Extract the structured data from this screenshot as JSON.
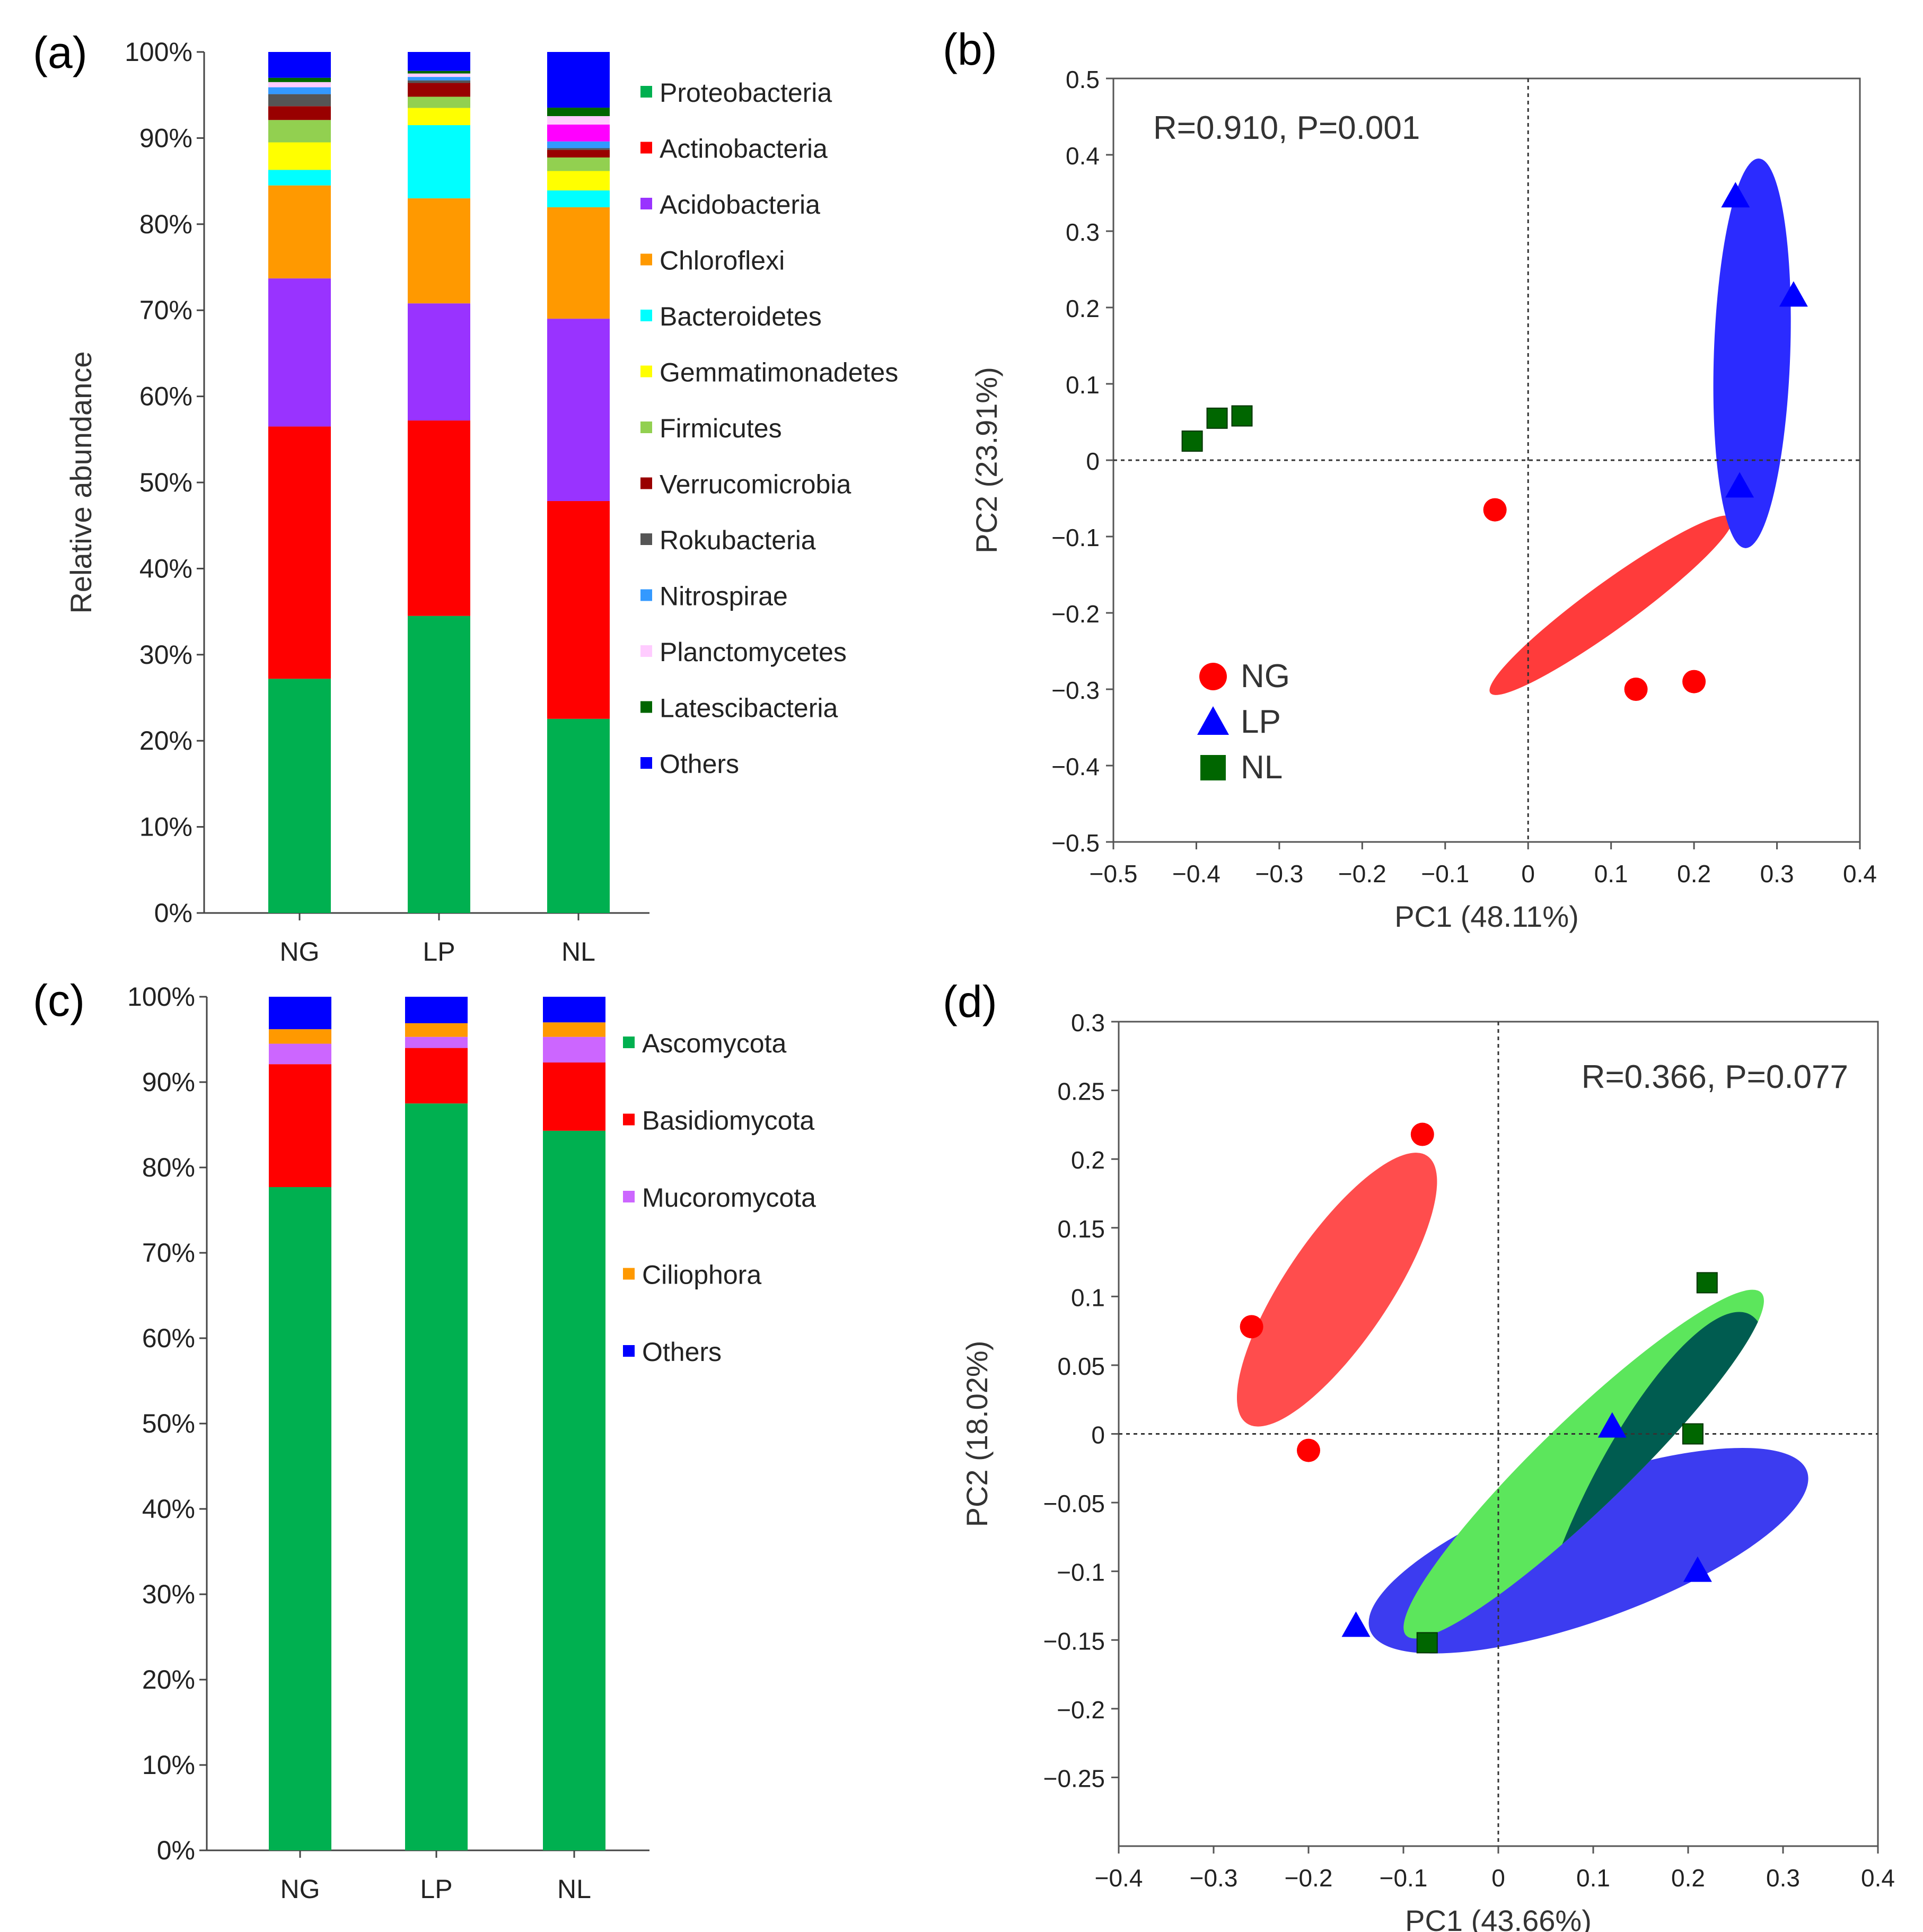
{
  "chart_data": [
    {
      "panel": "(a)",
      "type": "bar",
      "stacked": true,
      "categories": [
        "NG",
        "LP",
        "NL"
      ],
      "ylabel": "Relative abundance",
      "ylim": [
        0,
        100
      ],
      "yticks": [
        "0%",
        "10%",
        "20%",
        "30%",
        "40%",
        "50%",
        "60%",
        "70%",
        "80%",
        "90%",
        "100%"
      ],
      "legend_position": "right",
      "series": [
        {
          "name": "Proteobacteria",
          "color": "#00b050",
          "values": [
            27.2,
            34.5,
            23.0
          ]
        },
        {
          "name": "Actinobacteria",
          "color": "#ff0000",
          "values": [
            29.3,
            22.7,
            25.8
          ]
        },
        {
          "name": "Acidobacteria",
          "color": "#9933ff",
          "values": [
            17.2,
            13.6,
            21.6
          ]
        },
        {
          "name": "Chloroflexi",
          "color": "#ff9900",
          "values": [
            10.8,
            12.2,
            13.2
          ]
        },
        {
          "name": "Bacteroidetes",
          "color": "#00ffff",
          "values": [
            1.8,
            8.5,
            2.0
          ]
        },
        {
          "name": "Gemmatimonadetes",
          "color": "#ffff00",
          "values": [
            3.2,
            2.0,
            2.3
          ]
        },
        {
          "name": "Firmicutes",
          "color": "#92d050",
          "values": [
            2.6,
            1.3,
            1.6
          ]
        },
        {
          "name": "Verrucomicrobia",
          "color": "#990000",
          "values": [
            1.6,
            1.6,
            0.9
          ]
        },
        {
          "name": "Rokubacteria",
          "color": "#555555",
          "values": [
            1.4,
            0.3,
            0.2
          ]
        },
        {
          "name": "Nitrospirae",
          "color": "#3399ff",
          "values": [
            0.8,
            0.4,
            0.8
          ]
        },
        {
          "name": "Planctomycetes",
          "color": "#ffccff",
          "values": [
            0.6,
            0.4,
            1.0
          ]
        },
        {
          "name": "Latescibacteria",
          "color": "#006600",
          "values": [
            0.5,
            0.3,
            1.0
          ]
        },
        {
          "name": "Others",
          "color": "#0000ff",
          "values": [
            3.0,
            2.2,
            6.6
          ]
        }
      ],
      "extra_segments": [
        {
          "category": "NG",
          "color": "#ff00ff",
          "value": 0.0
        },
        {
          "category": "LP",
          "color": "#ff00ff",
          "value": 0.0
        },
        {
          "category": "NL",
          "color": "#ff00ff",
          "value": 2.0
        }
      ]
    },
    {
      "panel": "(b)",
      "type": "scatter",
      "xlabel": "PC1 (48.11%)",
      "ylabel": "PC2 (23.91%)",
      "xlim": [
        -0.5,
        0.4
      ],
      "ylim": [
        -0.5,
        0.5
      ],
      "xticks": [
        "−0.5",
        "−0.4",
        "−0.3",
        "−0.2",
        "−0.1",
        "0",
        "0.1",
        "0.2",
        "0.3",
        "0.4"
      ],
      "yticks": [
        "−0.5",
        "−0.4",
        "−0.3",
        "−0.2",
        "−0.1",
        "0",
        "0.1",
        "0.2",
        "0.3",
        "0.4",
        "0.5"
      ],
      "annotation": "R=0.910, P=0.001",
      "legend_position": "bottom-left",
      "series": [
        {
          "name": "NG",
          "marker": "circle",
          "color": "#ff0000",
          "fill": "#ff3b3b",
          "points": [
            [
              -0.04,
              -0.065
            ],
            [
              0.13,
              -0.3
            ],
            [
              0.2,
              -0.29
            ]
          ]
        },
        {
          "name": "LP",
          "marker": "triangle",
          "color": "#0000ff",
          "fill": "#2b2bff",
          "points": [
            [
              0.25,
              0.345
            ],
            [
              0.32,
              0.215
            ],
            [
              0.255,
              -0.035
            ]
          ]
        },
        {
          "name": "NL",
          "marker": "square",
          "color": "#006600",
          "fill": "#006600",
          "points": [
            [
              -0.405,
              0.025
            ],
            [
              -0.375,
              0.055
            ],
            [
              -0.345,
              0.058
            ]
          ]
        }
      ],
      "ellipses": [
        {
          "group": "NG",
          "center": [
            0.1,
            -0.19
          ],
          "rx": 0.18,
          "ry": 0.028,
          "angle_deg": 36
        },
        {
          "group": "LP",
          "center": [
            0.27,
            0.14
          ],
          "rx": 0.235,
          "ry": 0.046,
          "angle_deg": 88
        }
      ]
    },
    {
      "panel": "(c)",
      "type": "bar",
      "stacked": true,
      "categories": [
        "NG",
        "LP",
        "NL"
      ],
      "ylim": [
        0,
        100
      ],
      "yticks": [
        "0%",
        "10%",
        "20%",
        "30%",
        "40%",
        "50%",
        "60%",
        "70%",
        "80%",
        "90%",
        "100%"
      ],
      "legend_position": "right",
      "series": [
        {
          "name": "Ascomycota",
          "color": "#00b050",
          "values": [
            77.7,
            87.5,
            84.3
          ]
        },
        {
          "name": "Basidiomycota",
          "color": "#ff0000",
          "values": [
            14.4,
            6.5,
            8.0
          ]
        },
        {
          "name": "Mucoromycota",
          "color": "#cc66ff",
          "values": [
            2.4,
            1.3,
            3.0
          ]
        },
        {
          "name": "Ciliophora",
          "color": "#ff9900",
          "values": [
            1.7,
            1.6,
            1.7
          ]
        },
        {
          "name": "Others",
          "color": "#0000ff",
          "values": [
            3.8,
            3.1,
            3.0
          ]
        }
      ]
    },
    {
      "panel": "(d)",
      "type": "scatter",
      "xlabel": "PC1 (43.66%)",
      "ylabel": "PC2 (18.02%)",
      "xlim": [
        -0.4,
        0.4
      ],
      "ylim": [
        -0.3,
        0.3
      ],
      "xticks": [
        "−0.4",
        "−0.3",
        "−0.2",
        "−0.1",
        "0",
        "0.1",
        "0.2",
        "0.3",
        "0.4"
      ],
      "yticks": [
        "−0.25",
        "−0.2",
        "−0.15",
        "−0.1",
        "−0.05",
        "0",
        "0.05",
        "0.1",
        "0.15",
        "0.2",
        "0.25",
        "0.3"
      ],
      "annotation": "R=0.366, P=0.077",
      "series": [
        {
          "name": "NG",
          "marker": "circle",
          "color": "#ff0000",
          "fill": "#ff3b3b",
          "points": [
            [
              -0.08,
              0.218
            ],
            [
              -0.26,
              0.078
            ],
            [
              -0.2,
              -0.012
            ]
          ]
        },
        {
          "name": "LP",
          "marker": "triangle",
          "color": "#0000ff",
          "fill": "#1e1eff",
          "points": [
            [
              0.12,
              0.005
            ],
            [
              0.21,
              -0.1
            ],
            [
              -0.15,
              -0.14
            ]
          ]
        },
        {
          "name": "NL",
          "marker": "square",
          "color": "#006600",
          "fill": "#006600",
          "points": [
            [
              0.22,
              0.11
            ],
            [
              0.205,
              0.0
            ],
            [
              -0.075,
              -0.152
            ]
          ]
        }
      ],
      "ellipses": [
        {
          "group": "NG",
          "color": "#ff4d4d",
          "center": [
            -0.17,
            0.105
          ],
          "rx": 0.17,
          "ry": 0.055,
          "angle_deg": 56
        },
        {
          "group": "LP",
          "color": "#3c3cf0",
          "center": [
            0.095,
            -0.085
          ],
          "rx": 0.245,
          "ry": 0.073,
          "angle_deg": 20
        },
        {
          "group": "NL",
          "color": "#5ce65c",
          "center": [
            0.09,
            -0.022
          ],
          "rx": 0.26,
          "ry": 0.047,
          "angle_deg": 44
        }
      ],
      "overlap_color": "#005c50"
    }
  ],
  "panel_letters": [
    "(a)",
    "(b)",
    "(c)",
    "(d)"
  ]
}
